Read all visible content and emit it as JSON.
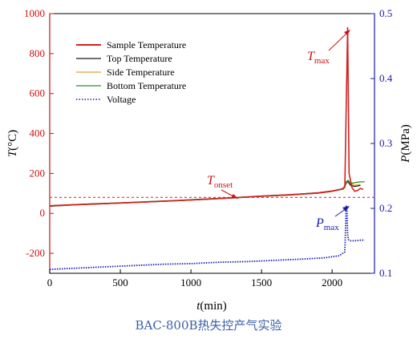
{
  "caption": "BAC-800B热失控产气实验",
  "chart_data": {
    "type": "line",
    "x_axis": {
      "label_var": "t",
      "label_unit": "(min)",
      "range": [
        0,
        2300
      ],
      "ticks": [
        0,
        500,
        1000,
        1500,
        2000
      ]
    },
    "y_left": {
      "label_var": "T",
      "label_unit": "(°C)",
      "range": [
        -300,
        1000
      ],
      "ticks": [
        -200,
        0,
        200,
        400,
        600,
        800,
        1000
      ],
      "color": "#cc1111"
    },
    "y_right": {
      "label_var": "P",
      "label_unit": "(MPa)",
      "range": [
        0.1,
        0.5
      ],
      "ticks": [
        0.1,
        0.2,
        0.3,
        0.4,
        0.5
      ],
      "color": "#1a1aa6"
    },
    "legend_position": "top-left",
    "series": [
      {
        "name": "Sample Temperature",
        "color": "#d42020",
        "axis": "left",
        "style": "solid",
        "points": [
          [
            0,
            38
          ],
          [
            50,
            40
          ],
          [
            150,
            43
          ],
          [
            300,
            47
          ],
          [
            500,
            52
          ],
          [
            700,
            58
          ],
          [
            900,
            64
          ],
          [
            1100,
            71
          ],
          [
            1300,
            78
          ],
          [
            1500,
            86
          ],
          [
            1700,
            93
          ],
          [
            1900,
            103
          ],
          [
            2000,
            112
          ],
          [
            2060,
            120
          ],
          [
            2090,
            130
          ],
          [
            2100,
            550
          ],
          [
            2110,
            930
          ],
          [
            2120,
            200
          ],
          [
            2140,
            130
          ],
          [
            2160,
            110
          ],
          [
            2180,
            115
          ],
          [
            2200,
            125
          ],
          [
            2220,
            120
          ]
        ]
      },
      {
        "name": "Top Temperature",
        "color": "#1a1a1a",
        "axis": "left",
        "style": "solid",
        "points": [
          [
            0,
            36
          ],
          [
            150,
            41
          ],
          [
            300,
            46
          ],
          [
            500,
            51
          ],
          [
            700,
            57
          ],
          [
            900,
            63
          ],
          [
            1100,
            70
          ],
          [
            1300,
            77
          ],
          [
            1500,
            85
          ],
          [
            1700,
            92
          ],
          [
            1900,
            101
          ],
          [
            2000,
            110
          ],
          [
            2080,
            122
          ],
          [
            2100,
            150
          ],
          [
            2110,
            160
          ],
          [
            2130,
            140
          ],
          [
            2160,
            135
          ],
          [
            2200,
            140
          ]
        ]
      },
      {
        "name": "Side Temperature",
        "color": "#e0a030",
        "axis": "left",
        "style": "solid",
        "points": [
          [
            0,
            37
          ],
          [
            150,
            42
          ],
          [
            300,
            47
          ],
          [
            500,
            52
          ],
          [
            700,
            58
          ],
          [
            900,
            64
          ],
          [
            1100,
            71
          ],
          [
            1300,
            78
          ],
          [
            1500,
            86
          ],
          [
            1700,
            93
          ],
          [
            1900,
            102
          ],
          [
            2000,
            111
          ],
          [
            2080,
            124
          ],
          [
            2100,
            155
          ],
          [
            2110,
            165
          ],
          [
            2130,
            150
          ],
          [
            2160,
            140
          ],
          [
            2200,
            145
          ]
        ]
      },
      {
        "name": "Bottom Temperature",
        "color": "#2e8b2e",
        "axis": "left",
        "style": "solid",
        "points": [
          [
            0,
            38
          ],
          [
            150,
            43
          ],
          [
            300,
            48
          ],
          [
            500,
            53
          ],
          [
            700,
            59
          ],
          [
            900,
            65
          ],
          [
            1100,
            72
          ],
          [
            1300,
            79
          ],
          [
            1500,
            87
          ],
          [
            1700,
            94
          ],
          [
            1900,
            103
          ],
          [
            2000,
            112
          ],
          [
            2080,
            125
          ],
          [
            2100,
            160
          ],
          [
            2115,
            165
          ],
          [
            2130,
            150
          ],
          [
            2150,
            152
          ],
          [
            2170,
            155
          ],
          [
            2200,
            158
          ],
          [
            2230,
            158
          ]
        ]
      },
      {
        "name": "Voltage",
        "color": "#1f1fb8",
        "axis": "right",
        "style": "dotted",
        "points": [
          [
            0,
            0.106
          ],
          [
            200,
            0.108
          ],
          [
            400,
            0.11
          ],
          [
            600,
            0.112
          ],
          [
            800,
            0.114
          ],
          [
            1000,
            0.115
          ],
          [
            1200,
            0.117
          ],
          [
            1400,
            0.118
          ],
          [
            1600,
            0.12
          ],
          [
            1800,
            0.122
          ],
          [
            1950,
            0.124
          ],
          [
            2050,
            0.127
          ],
          [
            2090,
            0.133
          ],
          [
            2100,
            0.205
          ],
          [
            2105,
            0.195
          ],
          [
            2110,
            0.16
          ],
          [
            2115,
            0.152
          ],
          [
            2130,
            0.15
          ],
          [
            2160,
            0.15
          ],
          [
            2200,
            0.151
          ],
          [
            2230,
            0.151
          ]
        ]
      }
    ],
    "reference_line": {
      "y": 80,
      "axis": "left",
      "color": "#e03030",
      "style": "dashed"
    },
    "annotations": [
      {
        "text": "T",
        "sub": "max",
        "color": "#cc1111",
        "target": [
          2110,
          930
        ]
      },
      {
        "text": "T",
        "sub": "onset",
        "color": "#cc1111",
        "target": [
          1300,
          78
        ]
      },
      {
        "text": "P",
        "sub": "max",
        "color": "#1a1aa6",
        "target": [
          2100,
          0.205
        ]
      }
    ]
  }
}
